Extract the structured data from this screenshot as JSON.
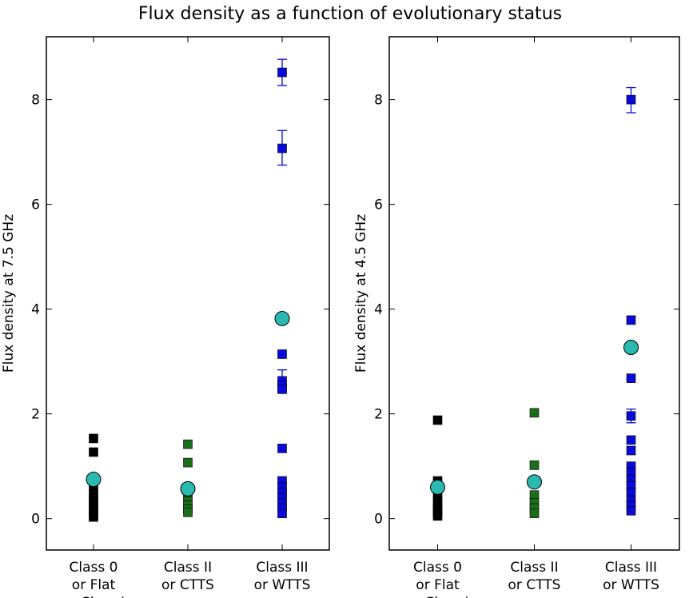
{
  "figure": {
    "title": "Flux density as a function of evolutionary status"
  },
  "chart_data": [
    {
      "type": "scatter",
      "ylabel": "Flux density at 7.5 GHz",
      "ylim": [
        -0.6,
        9.2
      ],
      "xlim": [
        0.5,
        3.5
      ],
      "yticks": [
        0,
        2,
        4,
        6,
        8
      ],
      "ytick_labels": [
        "0",
        "2",
        "4",
        "6",
        "8"
      ],
      "categories": [
        {
          "x": 1,
          "lines": [
            "Class 0",
            "or Flat",
            "or Class I"
          ]
        },
        {
          "x": 2,
          "lines": [
            "Class II",
            "or CTTS"
          ]
        },
        {
          "x": 3,
          "lines": [
            "Class III",
            "or WTTS"
          ]
        }
      ],
      "series": [
        {
          "name": "Class 0 or Flat or Class I",
          "x": 1,
          "color": "#000000",
          "values": [
            1.53,
            1.27,
            0.62,
            0.47,
            0.38,
            0.3,
            0.22,
            0.15,
            0.08,
            0.03
          ]
        },
        {
          "name": "Class II or CTTS",
          "x": 2,
          "color": "#1a6e1a",
          "values": [
            1.42,
            1.07,
            0.45,
            0.33,
            0.25,
            0.18,
            0.12
          ]
        },
        {
          "name": "Class III or WTTS",
          "x": 3,
          "color": "#0a0ad8",
          "values": [
            8.52,
            7.07,
            3.14,
            2.63,
            2.55,
            2.47,
            1.34,
            0.72,
            0.6,
            0.5,
            0.4,
            0.3,
            0.2,
            0.1
          ],
          "errors": [
            {
              "y": 8.52,
              "low": 8.27,
              "high": 8.77
            },
            {
              "y": 7.07,
              "low": 6.75,
              "high": 7.41
            },
            {
              "y": 2.63,
              "low": 2.44,
              "high": 2.84
            }
          ]
        }
      ],
      "means": {
        "color": "#2ab8b0",
        "points": [
          {
            "x": 1,
            "y": 0.75
          },
          {
            "x": 2,
            "y": 0.57
          },
          {
            "x": 3,
            "y": 3.82
          }
        ]
      }
    },
    {
      "type": "scatter",
      "ylabel": "Flux density at 4.5 GHz",
      "ylim": [
        -0.6,
        9.2
      ],
      "xlim": [
        0.5,
        3.5
      ],
      "yticks": [
        0,
        2,
        4,
        6,
        8
      ],
      "ytick_labels": [
        "0",
        "2",
        "4",
        "6",
        "8"
      ],
      "categories": [
        {
          "x": 1,
          "lines": [
            "Class 0",
            "or Flat",
            "or Class I"
          ]
        },
        {
          "x": 2,
          "lines": [
            "Class II",
            "or CTTS"
          ]
        },
        {
          "x": 3,
          "lines": [
            "Class III",
            "or WTTS"
          ]
        }
      ],
      "series": [
        {
          "name": "Class 0 or Flat or Class I",
          "x": 1,
          "color": "#000000",
          "values": [
            1.88,
            0.72,
            0.55,
            0.42,
            0.32,
            0.24,
            0.16,
            0.1,
            0.05
          ]
        },
        {
          "name": "Class II or CTTS",
          "x": 2,
          "color": "#1a6e1a",
          "values": [
            2.02,
            1.02,
            0.45,
            0.3,
            0.2,
            0.1
          ]
        },
        {
          "name": "Class III or WTTS",
          "x": 3,
          "color": "#0a0ad8",
          "values": [
            8.0,
            3.79,
            2.68,
            1.96,
            1.5,
            1.3,
            1.0,
            0.88,
            0.75,
            0.62,
            0.5,
            0.35,
            0.25,
            0.15
          ],
          "errors": [
            {
              "y": 8.0,
              "low": 7.75,
              "high": 8.23
            },
            {
              "y": 1.96,
              "low": 1.83,
              "high": 2.09
            }
          ]
        }
      ],
      "means": {
        "color": "#2ab8b0",
        "points": [
          {
            "x": 1,
            "y": 0.6
          },
          {
            "x": 2,
            "y": 0.7
          },
          {
            "x": 3,
            "y": 3.27
          }
        ]
      }
    }
  ]
}
